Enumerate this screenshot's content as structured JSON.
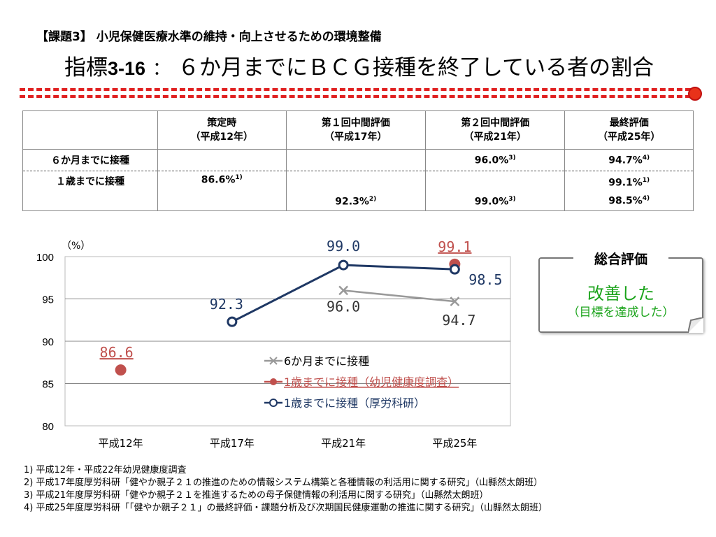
{
  "header": {
    "task": "【課題3】 小児保健医療水準の維持・向上させるための環境整備",
    "title_prefix": "指標",
    "title_num": "3-16",
    "title_sep": "：",
    "title_text": "６か月までにＢＣＧ接種を終了している者の割合"
  },
  "table": {
    "columns": [
      {
        "line1": "策定時",
        "line2": "（平成12年）"
      },
      {
        "line1": "第１回中間評価",
        "line2": "（平成17年）"
      },
      {
        "line1": "第２回中間評価",
        "line2": "（平成21年）"
      },
      {
        "line1": "最終評価",
        "line2": "（平成25年）"
      }
    ],
    "row1": {
      "label": "６か月までに接種",
      "c3": "96.0%",
      "c3_note": "3)",
      "c4": "94.7%",
      "c4_note": "4)"
    },
    "row2": {
      "label": "１歳までに接種",
      "c1": "86.6%",
      "c1_note": "1)",
      "c2": "92.3%",
      "c2_note": "2)",
      "c3": "99.0%",
      "c3_note": "3)",
      "c4a": "99.1%",
      "c4a_note": "1)",
      "c4b": "98.5%",
      "c4b_note": "4)"
    }
  },
  "chart_data": {
    "type": "line",
    "ylabel": "（%）",
    "ylim": [
      80,
      100
    ],
    "yticks": [
      80,
      85,
      90,
      95,
      100
    ],
    "categories": [
      "平成12年",
      "平成17年",
      "平成21年",
      "平成25年"
    ],
    "grid": true,
    "legend_position": "bottom-right (inside plot)",
    "series": [
      {
        "name": "6か月までに接種",
        "color": "#999999",
        "marker": "x",
        "values": [
          null,
          null,
          96.0,
          94.7
        ],
        "labels": [
          null,
          null,
          "96.0",
          "94.7"
        ]
      },
      {
        "name": "1歳までに接種（幼児健康度調査）",
        "color": "#c0504d",
        "marker": "filled-circle",
        "underline": true,
        "values": [
          86.6,
          null,
          null,
          99.1
        ],
        "labels": [
          "86.6",
          null,
          null,
          "99.1"
        ]
      },
      {
        "name": "1歳までに接種（厚労科研）",
        "color": "#1f3864",
        "marker": "open-circle",
        "values": [
          null,
          92.3,
          99.0,
          98.5
        ],
        "labels": [
          null,
          "92.3",
          "99.0",
          "98.5"
        ]
      }
    ]
  },
  "evaluation": {
    "title": "総合評価",
    "result": "改善した",
    "sub": "（目標を達成した）"
  },
  "notes": [
    "1) 平成12年・平成22年幼児健康度調査",
    "2) 平成17年度厚労科研「健やか親子２１の推進のための情報システム構築と各種情報の利活用に関する研究」（山縣然太朗班）",
    "3) 平成21年度厚労科研「健やか親子２１を推進するための母子保健情報の利活用に関する研究」（山縣然太朗班）",
    "4) 平成25年度厚労科研「「健やか親子２１」の最終評価・課題分析及び次期国民健康運動の推進に関する研究」（山縣然太朗班）"
  ]
}
